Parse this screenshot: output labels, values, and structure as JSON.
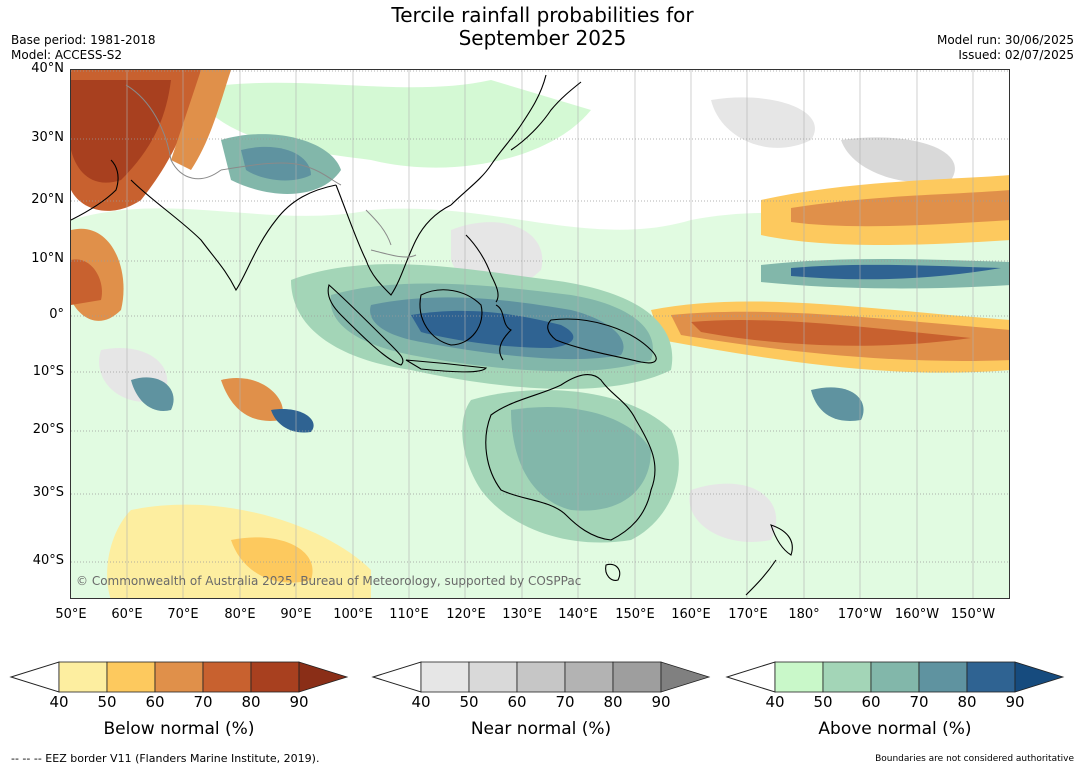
{
  "header": {
    "title_line1": "Tercile rainfall probabilities for",
    "title_line2": "September 2025",
    "base_period": "Base period: 1981-2018",
    "model": "Model: ACCESS-S2",
    "model_run": "Model run: 30/06/2025",
    "issued": "Issued: 02/07/2025"
  },
  "map": {
    "lat_labels": [
      "40°N",
      "30°N",
      "20°N",
      "10°N",
      "0°",
      "10°S",
      "20°S",
      "30°S",
      "40°S"
    ],
    "lon_labels": [
      "50°E",
      "60°E",
      "70°E",
      "80°E",
      "90°E",
      "100°E",
      "110°E",
      "120°E",
      "130°E",
      "140°E",
      "150°E",
      "160°E",
      "170°E",
      "180°",
      "170°W",
      "160°W",
      "150°W"
    ],
    "credit": "© Commonwealth of Australia 2025, Bureau of Meteorology, supported by COSPPac"
  },
  "colorbars": [
    {
      "label": "Below normal (%)",
      "ticks": [
        "40",
        "50",
        "60",
        "70",
        "80",
        "90"
      ],
      "colors": [
        "#fdeea0",
        "#fdc95e",
        "#e0904a",
        "#c8612f",
        "#a8401f",
        "#8a2e17"
      ]
    },
    {
      "label": "Near normal (%)",
      "ticks": [
        "40",
        "50",
        "60",
        "70",
        "80",
        "90"
      ],
      "colors": [
        "#e6e6e6",
        "#d9d9d9",
        "#c6c6c6",
        "#b3b3b3",
        "#9e9e9e",
        "#808080"
      ]
    },
    {
      "label": "Above normal (%)",
      "ticks": [
        "40",
        "50",
        "60",
        "70",
        "80",
        "90"
      ],
      "colors": [
        "#c9f8c9",
        "#a3d5b7",
        "#82b7aa",
        "#5f93a0",
        "#2f6392",
        "#164b7e"
      ]
    }
  ],
  "footer": {
    "eez_note": "--  --  -- EEZ border V11 (Flanders Marine Institute, 2019).",
    "disclaimer": "Boundaries are not considered authoritative"
  }
}
